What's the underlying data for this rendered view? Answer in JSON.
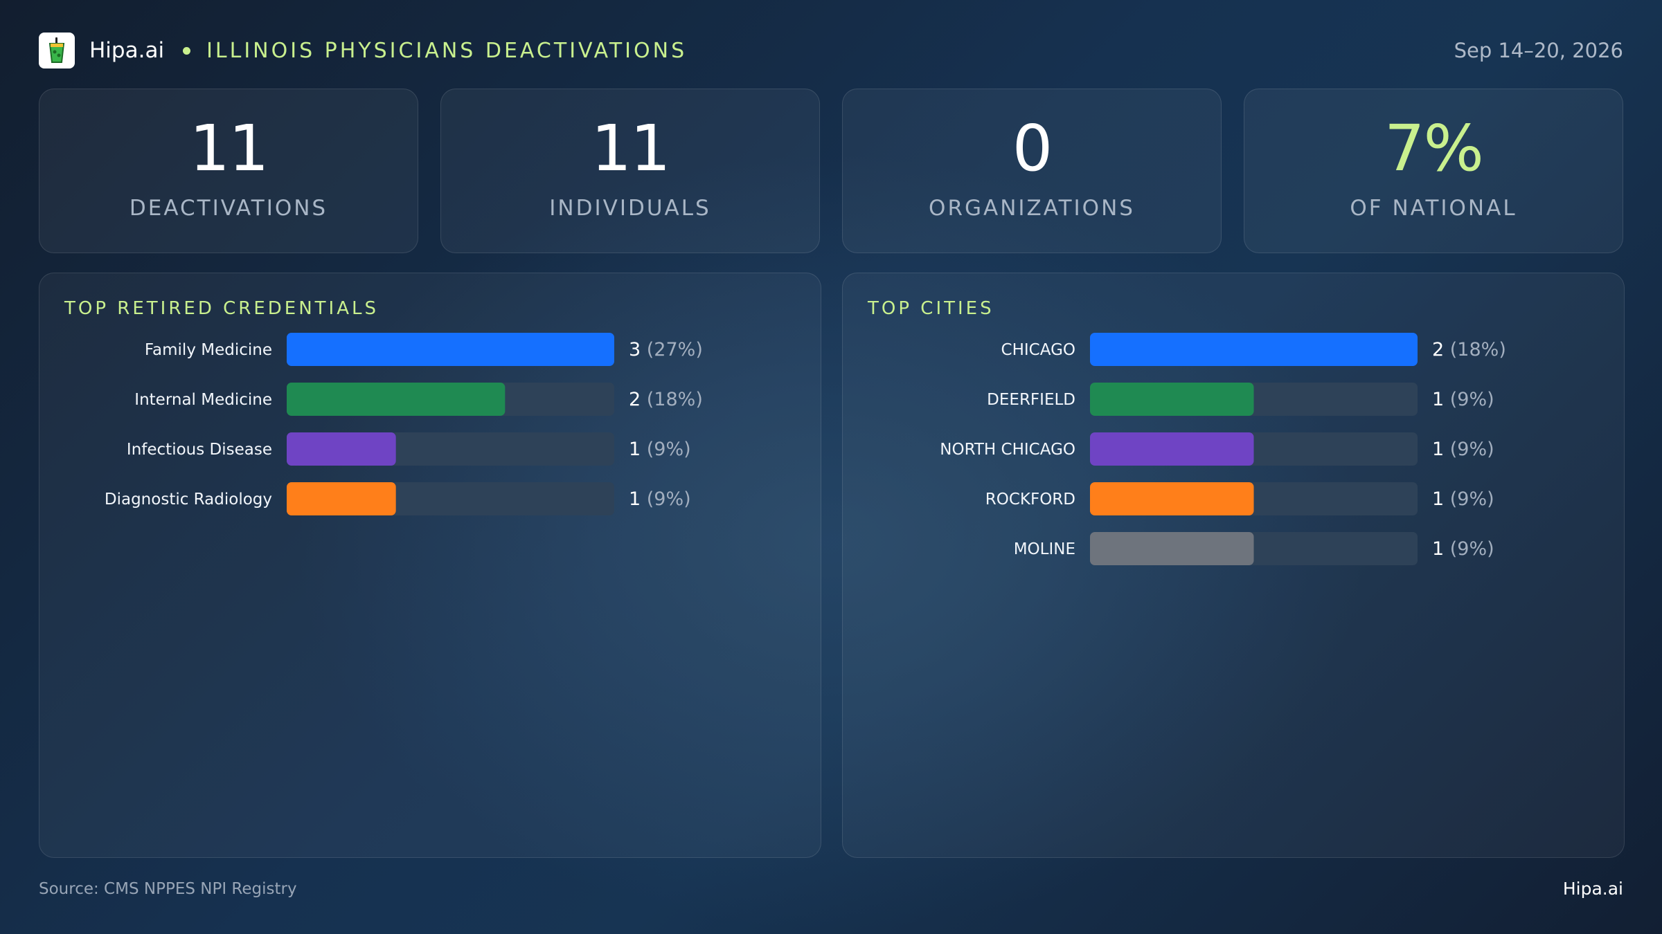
{
  "header": {
    "brand": "Hipa.ai",
    "title": "ILLINOIS PHYSICIANS DEACTIVATIONS",
    "date_range": "Sep 14–20, 2026"
  },
  "kpis": [
    {
      "value": "11",
      "label": "DEACTIVATIONS"
    },
    {
      "value": "11",
      "label": "INDIVIDUALS"
    },
    {
      "value": "0",
      "label": "ORGANIZATIONS"
    },
    {
      "value": "7%",
      "label": "OF NATIONAL"
    }
  ],
  "colors": {
    "accent": "#c9f08e",
    "track": "#2e4258",
    "series": [
      "#1570ff",
      "#1f8a52",
      "#6f44c4",
      "#ff7f1a",
      "#6e747d"
    ]
  },
  "chart_data": [
    {
      "type": "bar",
      "title": "TOP RETIRED CREDENTIALS",
      "categories": [
        "Family Medicine",
        "Internal Medicine",
        "Infectious Disease",
        "Diagnostic Radiology"
      ],
      "values": [
        3,
        2,
        1,
        1
      ],
      "value_labels": [
        "(27%)",
        "(18%)",
        "(9%)",
        "(9%)"
      ],
      "xlim": [
        0,
        3
      ]
    },
    {
      "type": "bar",
      "title": "TOP CITIES",
      "categories": [
        "CHICAGO",
        "DEERFIELD",
        "NORTH CHICAGO",
        "ROCKFORD",
        "MOLINE"
      ],
      "values": [
        2,
        1,
        1,
        1,
        1
      ],
      "value_labels": [
        "(18%)",
        "(9%)",
        "(9%)",
        "(9%)",
        "(9%)"
      ],
      "xlim": [
        0,
        2
      ]
    }
  ],
  "footer": {
    "source": "Source: CMS NPPES NPI Registry",
    "brand": "Hipa.ai"
  }
}
